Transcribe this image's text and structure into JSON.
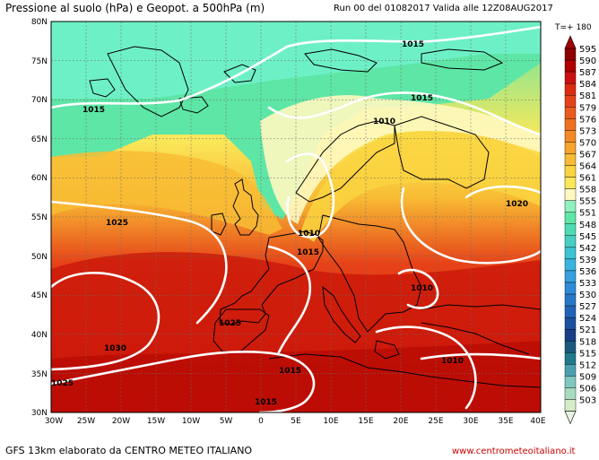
{
  "header": {
    "title": "Pressione al suolo (hPa) e Geopot. a 500hPa (m)",
    "run_info": "Run 00 del 01082017  Valida alle 12Z08AUG2017",
    "timestep": "T=+ 180"
  },
  "footer": {
    "credit": "GFS 13km elaborato da CENTRO METEO ITALIANO",
    "website": "www.centrometeoitaliano.it"
  },
  "map": {
    "lat_labels": [
      "80N",
      "75N",
      "70N",
      "65N",
      "60N",
      "55N",
      "50N",
      "45N",
      "40N",
      "35N",
      "30N"
    ],
    "lon_labels": [
      "30W",
      "25W",
      "20W",
      "15W",
      "10W",
      "5W",
      "0",
      "5E",
      "10E",
      "15E",
      "20E",
      "25E",
      "30E",
      "35E",
      "40E"
    ],
    "isobar_labels": [
      {
        "text": "1015"
      },
      {
        "text": "1015"
      },
      {
        "text": "1015"
      },
      {
        "text": "1010"
      },
      {
        "text": "1020"
      },
      {
        "text": "1025"
      },
      {
        "text": "1010"
      },
      {
        "text": "1015"
      },
      {
        "text": "1010"
      },
      {
        "text": "1025"
      },
      {
        "text": "1030"
      },
      {
        "text": "1010"
      },
      {
        "text": "1015"
      },
      {
        "text": "1025"
      },
      {
        "text": "1015"
      }
    ]
  },
  "colorbar": {
    "values": [
      "595",
      "590",
      "587",
      "584",
      "581",
      "579",
      "576",
      "573",
      "570",
      "567",
      "564",
      "561",
      "558",
      "555",
      "551",
      "548",
      "545",
      "542",
      "539",
      "536",
      "533",
      "530",
      "527",
      "524",
      "521",
      "518",
      "515",
      "512",
      "509",
      "506",
      "503"
    ],
    "colors": [
      "#8c0000",
      "#b00000",
      "#cc1010",
      "#dd2a10",
      "#e64218",
      "#ec5a1c",
      "#f07020",
      "#f48a26",
      "#f6a42c",
      "#f8bc34",
      "#fad440",
      "#fbe85a",
      "#fff8c0",
      "#8ff0c0",
      "#5ee6a6",
      "#4fdcb4",
      "#46d0c4",
      "#3cc4d4",
      "#38b4e0",
      "#34a0e0",
      "#2e8cd8",
      "#2878c8",
      "#2264b8",
      "#1c50a0",
      "#1a3e86",
      "#1a5a7e",
      "#1e7a8c",
      "#4aa0b0",
      "#7ec8c0",
      "#a8dcc0",
      "#d4ecc8"
    ],
    "top_color": "#a00000",
    "bottom_color": "#e8f4e0"
  }
}
